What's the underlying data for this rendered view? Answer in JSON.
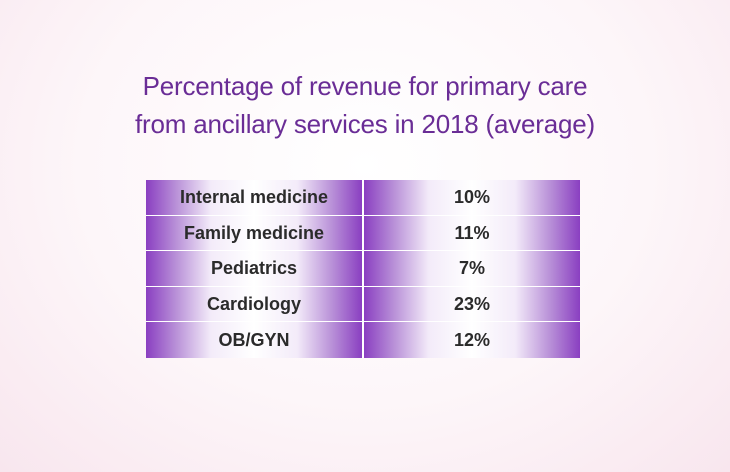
{
  "chart_data": {
    "type": "table",
    "title": [
      "Percentage of revenue for primary care",
      "from ancillary services in 2018 (average)"
    ],
    "rows": [
      {
        "label": "Internal medicine",
        "value": "10%"
      },
      {
        "label": "Family medicine",
        "value": "11%"
      },
      {
        "label": "Pediatrics",
        "value": "7%"
      },
      {
        "label": "Cardiology",
        "value": "23%"
      },
      {
        "label": "OB/GYN",
        "value": "12%"
      }
    ],
    "colors": {
      "title": "#6a2d96",
      "cell_edge": "#8a3fc1",
      "cell_center": "#ffffff"
    }
  }
}
